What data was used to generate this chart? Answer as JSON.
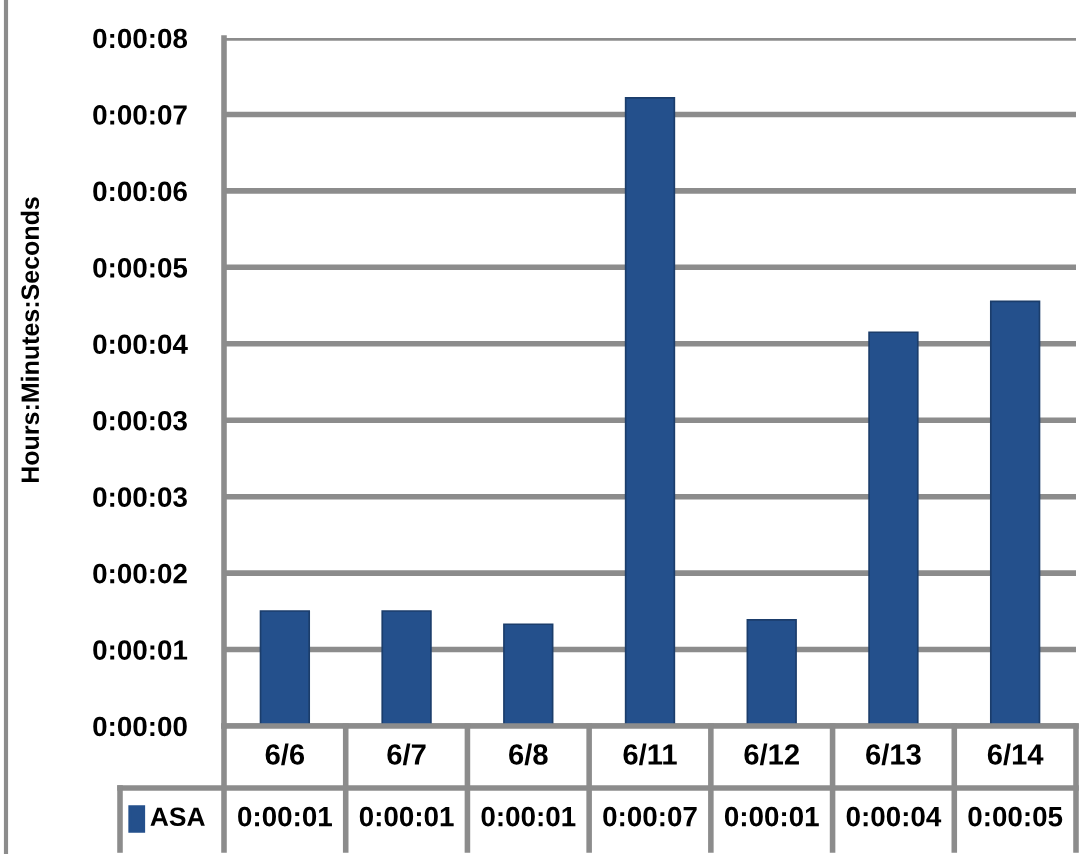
{
  "chart_data": {
    "type": "bar",
    "ylabel": "Hours:Minutes:Seconds",
    "categories": [
      "6/6",
      "6/7",
      "6/8",
      "6/11",
      "6/12",
      "6/13",
      "6/14"
    ],
    "series": [
      {
        "name": "ASA",
        "color": "#24508c",
        "values": [
          1.3,
          1.3,
          1.15,
          7.1,
          1.2,
          4.45,
          4.8
        ],
        "value_labels": [
          "0:00:01",
          "0:00:01",
          "0:00:01",
          "0:00:07",
          "0:00:01",
          "0:00:04",
          "0:00:05"
        ]
      }
    ],
    "ylim": [
      0,
      7.776
    ],
    "yticks": [
      {
        "value": 0,
        "label": "0:00:00"
      },
      {
        "value": 0.864,
        "label": "0:00:01"
      },
      {
        "value": 1.728,
        "label": "0:00:02"
      },
      {
        "value": 2.592,
        "label": "0:00:03"
      },
      {
        "value": 3.456,
        "label": "0:00:03"
      },
      {
        "value": 4.32,
        "label": "0:00:04"
      },
      {
        "value": 5.184,
        "label": "0:00:05"
      },
      {
        "value": 6.048,
        "label": "0:00:06"
      },
      {
        "value": 6.912,
        "label": "0:00:07"
      },
      {
        "value": 7.776,
        "label": "0:00:08"
      }
    ],
    "grid": "y",
    "legend": "bottom"
  }
}
